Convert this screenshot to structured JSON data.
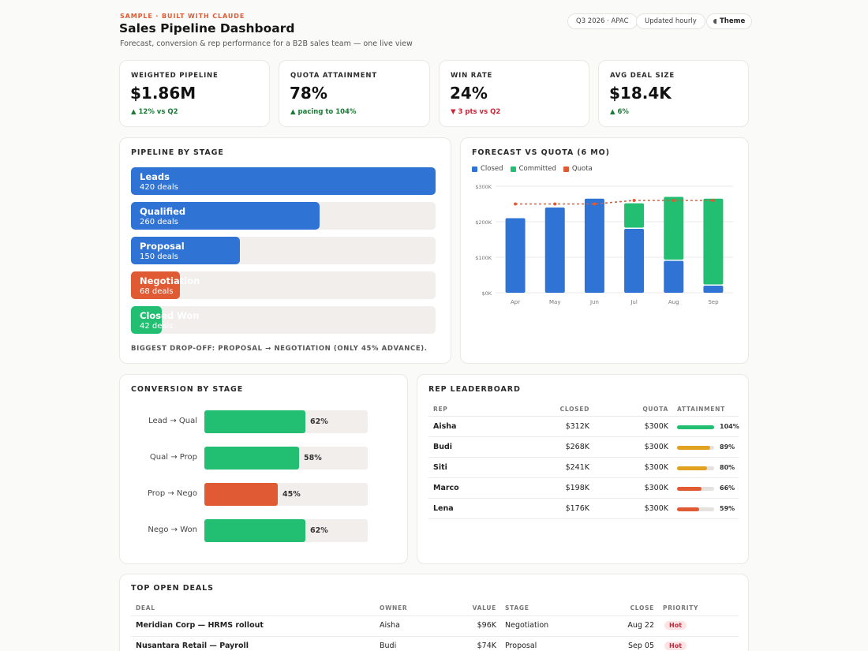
{
  "header": {
    "eyebrow": "SAMPLE · BUILT WITH CLAUDE",
    "title": "Sales Pipeline Dashboard",
    "subtitle": "Forecast, conversion & rep performance for a B2B sales team — one live view",
    "period_pill": "Q3 2026 · APAC",
    "updated_pill": "Updated hourly",
    "theme_button": "Theme"
  },
  "kpis": [
    {
      "label": "WEIGHTED PIPELINE",
      "value": "$1.86M",
      "delta": "▲ 12% vs Q2",
      "direction": "up"
    },
    {
      "label": "QUOTA ATTAINMENT",
      "value": "78%",
      "delta": "▲ pacing to 104%",
      "direction": "up"
    },
    {
      "label": "WIN RATE",
      "value": "24%",
      "delta": "▼ 3 pts vs Q2",
      "direction": "down"
    },
    {
      "label": "AVG DEAL SIZE",
      "value": "$18.4K",
      "delta": "▲ 6%",
      "direction": "up"
    }
  ],
  "pipeline": {
    "title": "PIPELINE BY STAGE",
    "stages": [
      {
        "name": "Leads",
        "count_label": "420 deals",
        "count": 420,
        "color": "#2f74d4"
      },
      {
        "name": "Qualified",
        "count_label": "260 deals",
        "count": 260,
        "color": "#2f74d4"
      },
      {
        "name": "Proposal",
        "count_label": "150 deals",
        "count": 150,
        "color": "#2f74d4"
      },
      {
        "name": "Negotiation",
        "count_label": "68 deals",
        "count": 68,
        "color": "#e05a33"
      },
      {
        "name": "Closed Won",
        "count_label": "42 deals",
        "count": 42,
        "color": "#22bf72"
      }
    ],
    "insight": "BIGGEST DROP-OFF: PROPOSAL → NEGOTIATION (ONLY 45% ADVANCE)."
  },
  "forecast": {
    "title": "FORECAST VS QUOTA (6 MO)",
    "legend": [
      {
        "label": "Closed",
        "color": "#2f74d4"
      },
      {
        "label": "Committed",
        "color": "#22bf72"
      },
      {
        "label": "Quota",
        "color": "#e05a33"
      }
    ]
  },
  "chart_data": {
    "type": "bar",
    "stacked": true,
    "title": "FORECAST VS QUOTA (6 MO)",
    "categories": [
      "Apr",
      "May",
      "Jun",
      "Jul",
      "Aug",
      "Sep"
    ],
    "series": [
      {
        "name": "Closed",
        "type": "bar",
        "color": "#2f74d4",
        "values": [
          210,
          240,
          265,
          180,
          90,
          20
        ]
      },
      {
        "name": "Committed",
        "type": "bar",
        "color": "#22bf72",
        "values": [
          0,
          0,
          0,
          72,
          180,
          245
        ]
      },
      {
        "name": "Quota",
        "type": "line",
        "color": "#e05a33",
        "values": [
          250,
          250,
          250,
          260,
          260,
          260
        ]
      }
    ],
    "ylim": [
      0,
      300
    ],
    "yticks": [
      0,
      100,
      200,
      300
    ],
    "ytick_labels": [
      "$0K",
      "$100K",
      "$200K",
      "$300K"
    ],
    "grid": true,
    "legend_position": "top-left"
  },
  "conversion": {
    "title": "CONVERSION BY STAGE",
    "rows": [
      {
        "label": "Lead → Qual",
        "pct": 62,
        "pct_label": "62%",
        "color": "#22bf72"
      },
      {
        "label": "Qual → Prop",
        "pct": 58,
        "pct_label": "58%",
        "color": "#22bf72"
      },
      {
        "label": "Prop → Nego",
        "pct": 45,
        "pct_label": "45%",
        "color": "#e05a33"
      },
      {
        "label": "Nego → Won",
        "pct": 62,
        "pct_label": "62%",
        "color": "#22bf72"
      }
    ]
  },
  "leaderboard": {
    "title": "REP LEADERBOARD",
    "headers": {
      "rep": "REP",
      "closed": "CLOSED",
      "quota": "QUOTA",
      "attainment": "ATTAINMENT"
    },
    "rows": [
      {
        "rep": "Aisha",
        "closed": "$312K",
        "quota": "$300K",
        "pct": 104,
        "pct_label": "104%",
        "color": "#22bf72"
      },
      {
        "rep": "Budi",
        "closed": "$268K",
        "quota": "$300K",
        "pct": 89,
        "pct_label": "89%",
        "color": "#e0a21f"
      },
      {
        "rep": "Siti",
        "closed": "$241K",
        "quota": "$300K",
        "pct": 80,
        "pct_label": "80%",
        "color": "#e0a21f"
      },
      {
        "rep": "Marco",
        "closed": "$198K",
        "quota": "$300K",
        "pct": 66,
        "pct_label": "66%",
        "color": "#e05a33"
      },
      {
        "rep": "Lena",
        "closed": "$176K",
        "quota": "$300K",
        "pct": 59,
        "pct_label": "59%",
        "color": "#e05a33"
      }
    ]
  },
  "deals": {
    "title": "TOP OPEN DEALS",
    "headers": {
      "deal": "DEAL",
      "owner": "OWNER",
      "value": "VALUE",
      "stage": "STAGE",
      "close": "CLOSE",
      "priority": "PRIORITY"
    },
    "rows": [
      {
        "deal": "Meridian Corp — HRMS rollout",
        "owner": "Aisha",
        "value": "$96K",
        "stage": "Negotiation",
        "close": "Aug 22",
        "priority": "Hot"
      },
      {
        "deal": "Nusantara Retail — Payroll",
        "owner": "Budi",
        "value": "$74K",
        "stage": "Proposal",
        "close": "Sep 05",
        "priority": "Hot"
      }
    ]
  }
}
